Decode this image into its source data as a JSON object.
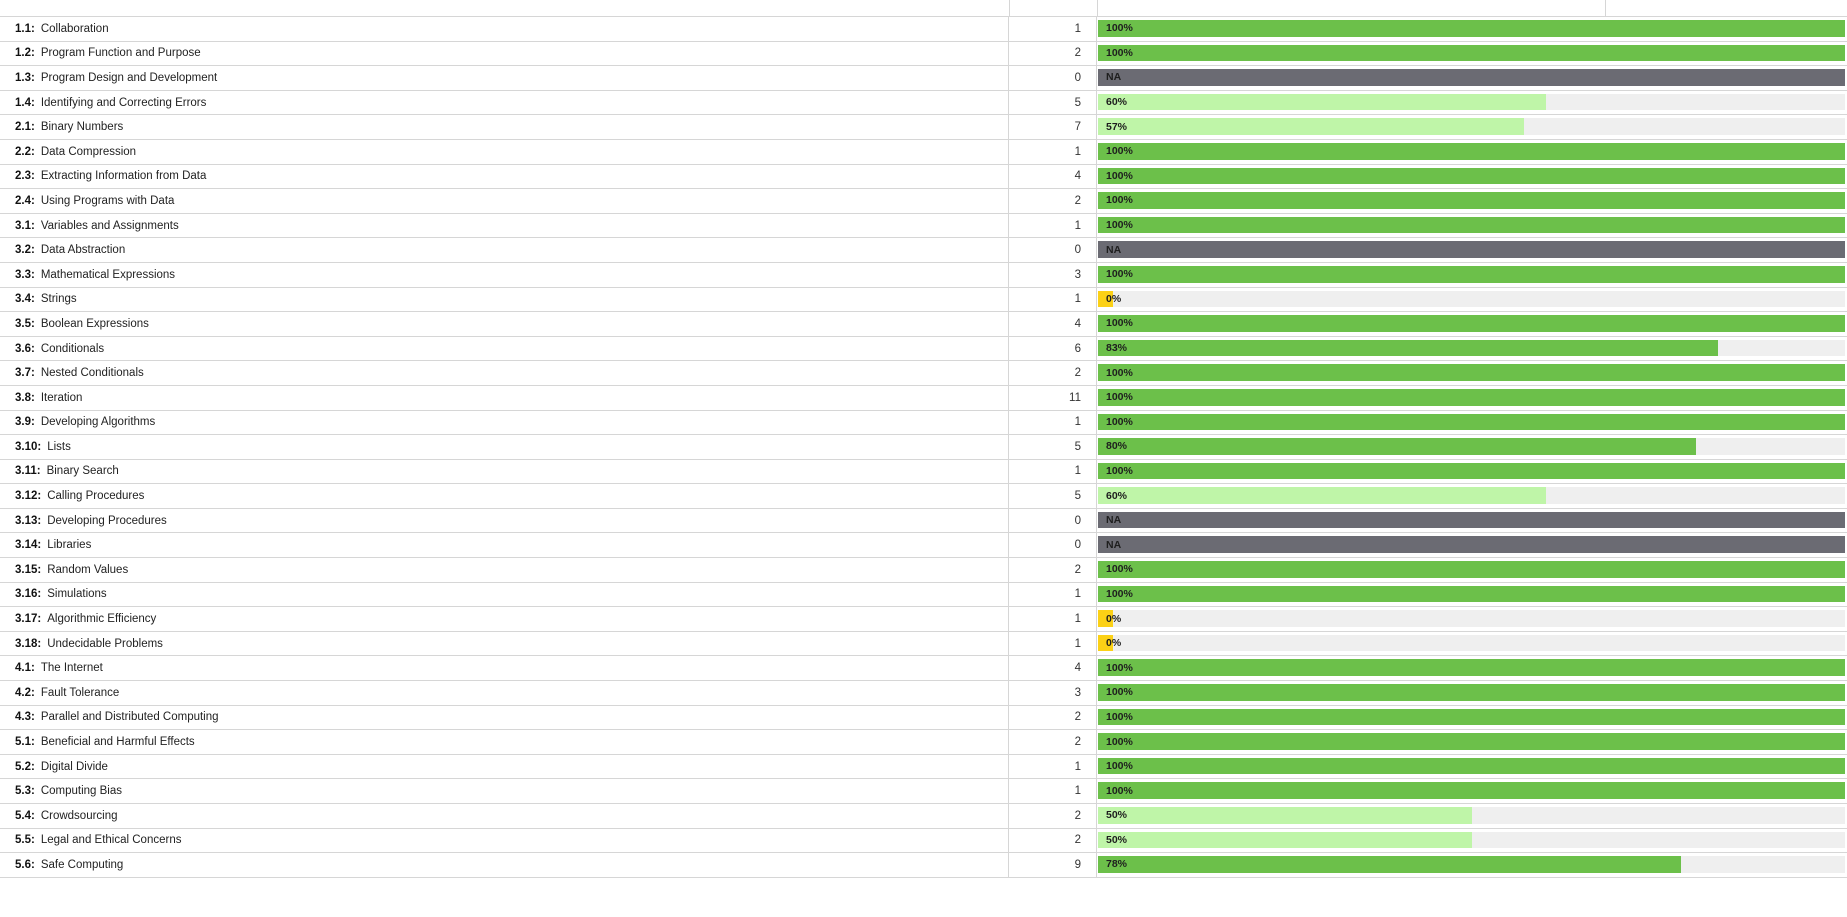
{
  "colors": {
    "full": "#6cc04a",
    "partial": "#bff5a8",
    "mid": "#6cc04a",
    "zero": "#fcd116",
    "na": "#6b6b73"
  },
  "rows": [
    {
      "code": "1.1:",
      "name": "Collaboration",
      "count": "1",
      "pct": 100,
      "label": "100%",
      "status": "full"
    },
    {
      "code": "1.2:",
      "name": "Program Function and Purpose",
      "count": "2",
      "pct": 100,
      "label": "100%",
      "status": "full"
    },
    {
      "code": "1.3:",
      "name": "Program Design and Development",
      "count": "0",
      "pct": 100,
      "label": "NA",
      "status": "na"
    },
    {
      "code": "1.4:",
      "name": "Identifying and Correcting Errors",
      "count": "5",
      "pct": 60,
      "label": "60%",
      "status": "partial"
    },
    {
      "code": "2.1:",
      "name": "Binary Numbers",
      "count": "7",
      "pct": 57,
      "label": "57%",
      "status": "partial"
    },
    {
      "code": "2.2:",
      "name": "Data Compression",
      "count": "1",
      "pct": 100,
      "label": "100%",
      "status": "full"
    },
    {
      "code": "2.3:",
      "name": "Extracting Information from Data",
      "count": "4",
      "pct": 100,
      "label": "100%",
      "status": "full"
    },
    {
      "code": "2.4:",
      "name": "Using Programs with Data",
      "count": "2",
      "pct": 100,
      "label": "100%",
      "status": "full"
    },
    {
      "code": "3.1:",
      "name": "Variables and Assignments",
      "count": "1",
      "pct": 100,
      "label": "100%",
      "status": "full"
    },
    {
      "code": "3.2:",
      "name": "Data Abstraction",
      "count": "0",
      "pct": 100,
      "label": "NA",
      "status": "na"
    },
    {
      "code": "3.3:",
      "name": "Mathematical Expressions",
      "count": "3",
      "pct": 100,
      "label": "100%",
      "status": "full"
    },
    {
      "code": "3.4:",
      "name": "Strings",
      "count": "1",
      "pct": 0,
      "label": "0%",
      "status": "zero"
    },
    {
      "code": "3.5:",
      "name": "Boolean Expressions",
      "count": "4",
      "pct": 100,
      "label": "100%",
      "status": "full"
    },
    {
      "code": "3.6:",
      "name": "Conditionals",
      "count": "6",
      "pct": 83,
      "label": "83%",
      "status": "mid"
    },
    {
      "code": "3.7:",
      "name": "Nested Conditionals",
      "count": "2",
      "pct": 100,
      "label": "100%",
      "status": "full"
    },
    {
      "code": "3.8:",
      "name": "Iteration",
      "count": "11",
      "pct": 100,
      "label": "100%",
      "status": "full"
    },
    {
      "code": "3.9:",
      "name": "Developing Algorithms",
      "count": "1",
      "pct": 100,
      "label": "100%",
      "status": "full"
    },
    {
      "code": "3.10:",
      "name": "Lists",
      "count": "5",
      "pct": 80,
      "label": "80%",
      "status": "mid"
    },
    {
      "code": "3.11:",
      "name": "Binary Search",
      "count": "1",
      "pct": 100,
      "label": "100%",
      "status": "full"
    },
    {
      "code": "3.12:",
      "name": "Calling Procedures",
      "count": "5",
      "pct": 60,
      "label": "60%",
      "status": "partial"
    },
    {
      "code": "3.13:",
      "name": "Developing Procedures",
      "count": "0",
      "pct": 100,
      "label": "NA",
      "status": "na"
    },
    {
      "code": "3.14:",
      "name": "Libraries",
      "count": "0",
      "pct": 100,
      "label": "NA",
      "status": "na"
    },
    {
      "code": "3.15:",
      "name": "Random Values",
      "count": "2",
      "pct": 100,
      "label": "100%",
      "status": "full"
    },
    {
      "code": "3.16:",
      "name": "Simulations",
      "count": "1",
      "pct": 100,
      "label": "100%",
      "status": "full"
    },
    {
      "code": "3.17:",
      "name": "Algorithmic Efficiency",
      "count": "1",
      "pct": 0,
      "label": "0%",
      "status": "zero"
    },
    {
      "code": "3.18:",
      "name": "Undecidable Problems",
      "count": "1",
      "pct": 0,
      "label": "0%",
      "status": "zero"
    },
    {
      "code": "4.1:",
      "name": "The Internet",
      "count": "4",
      "pct": 100,
      "label": "100%",
      "status": "full"
    },
    {
      "code": "4.2:",
      "name": "Fault Tolerance",
      "count": "3",
      "pct": 100,
      "label": "100%",
      "status": "full"
    },
    {
      "code": "4.3:",
      "name": "Parallel and Distributed Computing",
      "count": "2",
      "pct": 100,
      "label": "100%",
      "status": "full"
    },
    {
      "code": "5.1:",
      "name": "Beneficial and Harmful Effects",
      "count": "2",
      "pct": 100,
      "label": "100%",
      "status": "full"
    },
    {
      "code": "5.2:",
      "name": "Digital Divide",
      "count": "1",
      "pct": 100,
      "label": "100%",
      "status": "full"
    },
    {
      "code": "5.3:",
      "name": "Computing Bias",
      "count": "1",
      "pct": 100,
      "label": "100%",
      "status": "full"
    },
    {
      "code": "5.4:",
      "name": "Crowdsourcing",
      "count": "2",
      "pct": 50,
      "label": "50%",
      "status": "partial"
    },
    {
      "code": "5.5:",
      "name": "Legal and Ethical Concerns",
      "count": "2",
      "pct": 50,
      "label": "50%",
      "status": "partial"
    },
    {
      "code": "5.6:",
      "name": "Safe Computing",
      "count": "9",
      "pct": 78,
      "label": "78%",
      "status": "mid"
    }
  ]
}
